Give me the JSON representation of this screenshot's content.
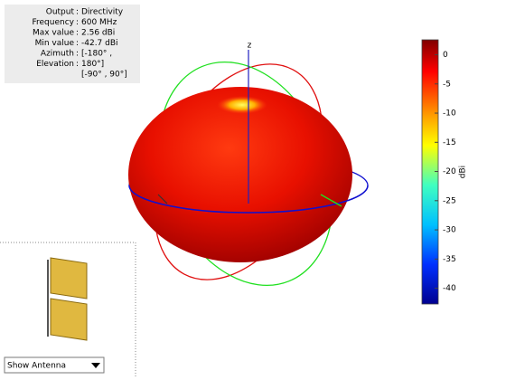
{
  "info": {
    "rows": [
      {
        "label": "Output",
        "value": "Directivity"
      },
      {
        "label": "Frequency",
        "value": "600 MHz"
      },
      {
        "label": "Max value",
        "value": "2.56 dBi"
      },
      {
        "label": "Min value",
        "value": "-42.7 dBi"
      },
      {
        "label": "Azimuth",
        "value": "[-180° ,"
      },
      {
        "label": "Elevation",
        "value": "180°]"
      }
    ],
    "continuation": "[-90° , 90°]"
  },
  "plot": {
    "axis_label": "z"
  },
  "colorbar": {
    "label": "dBi",
    "lim": [
      -42.7,
      2.56
    ],
    "ticks": [
      0,
      -5,
      -10,
      -15,
      -20,
      -25,
      -30,
      -35,
      -40
    ]
  },
  "controls": {
    "dropdown": "Show Antenna"
  }
}
